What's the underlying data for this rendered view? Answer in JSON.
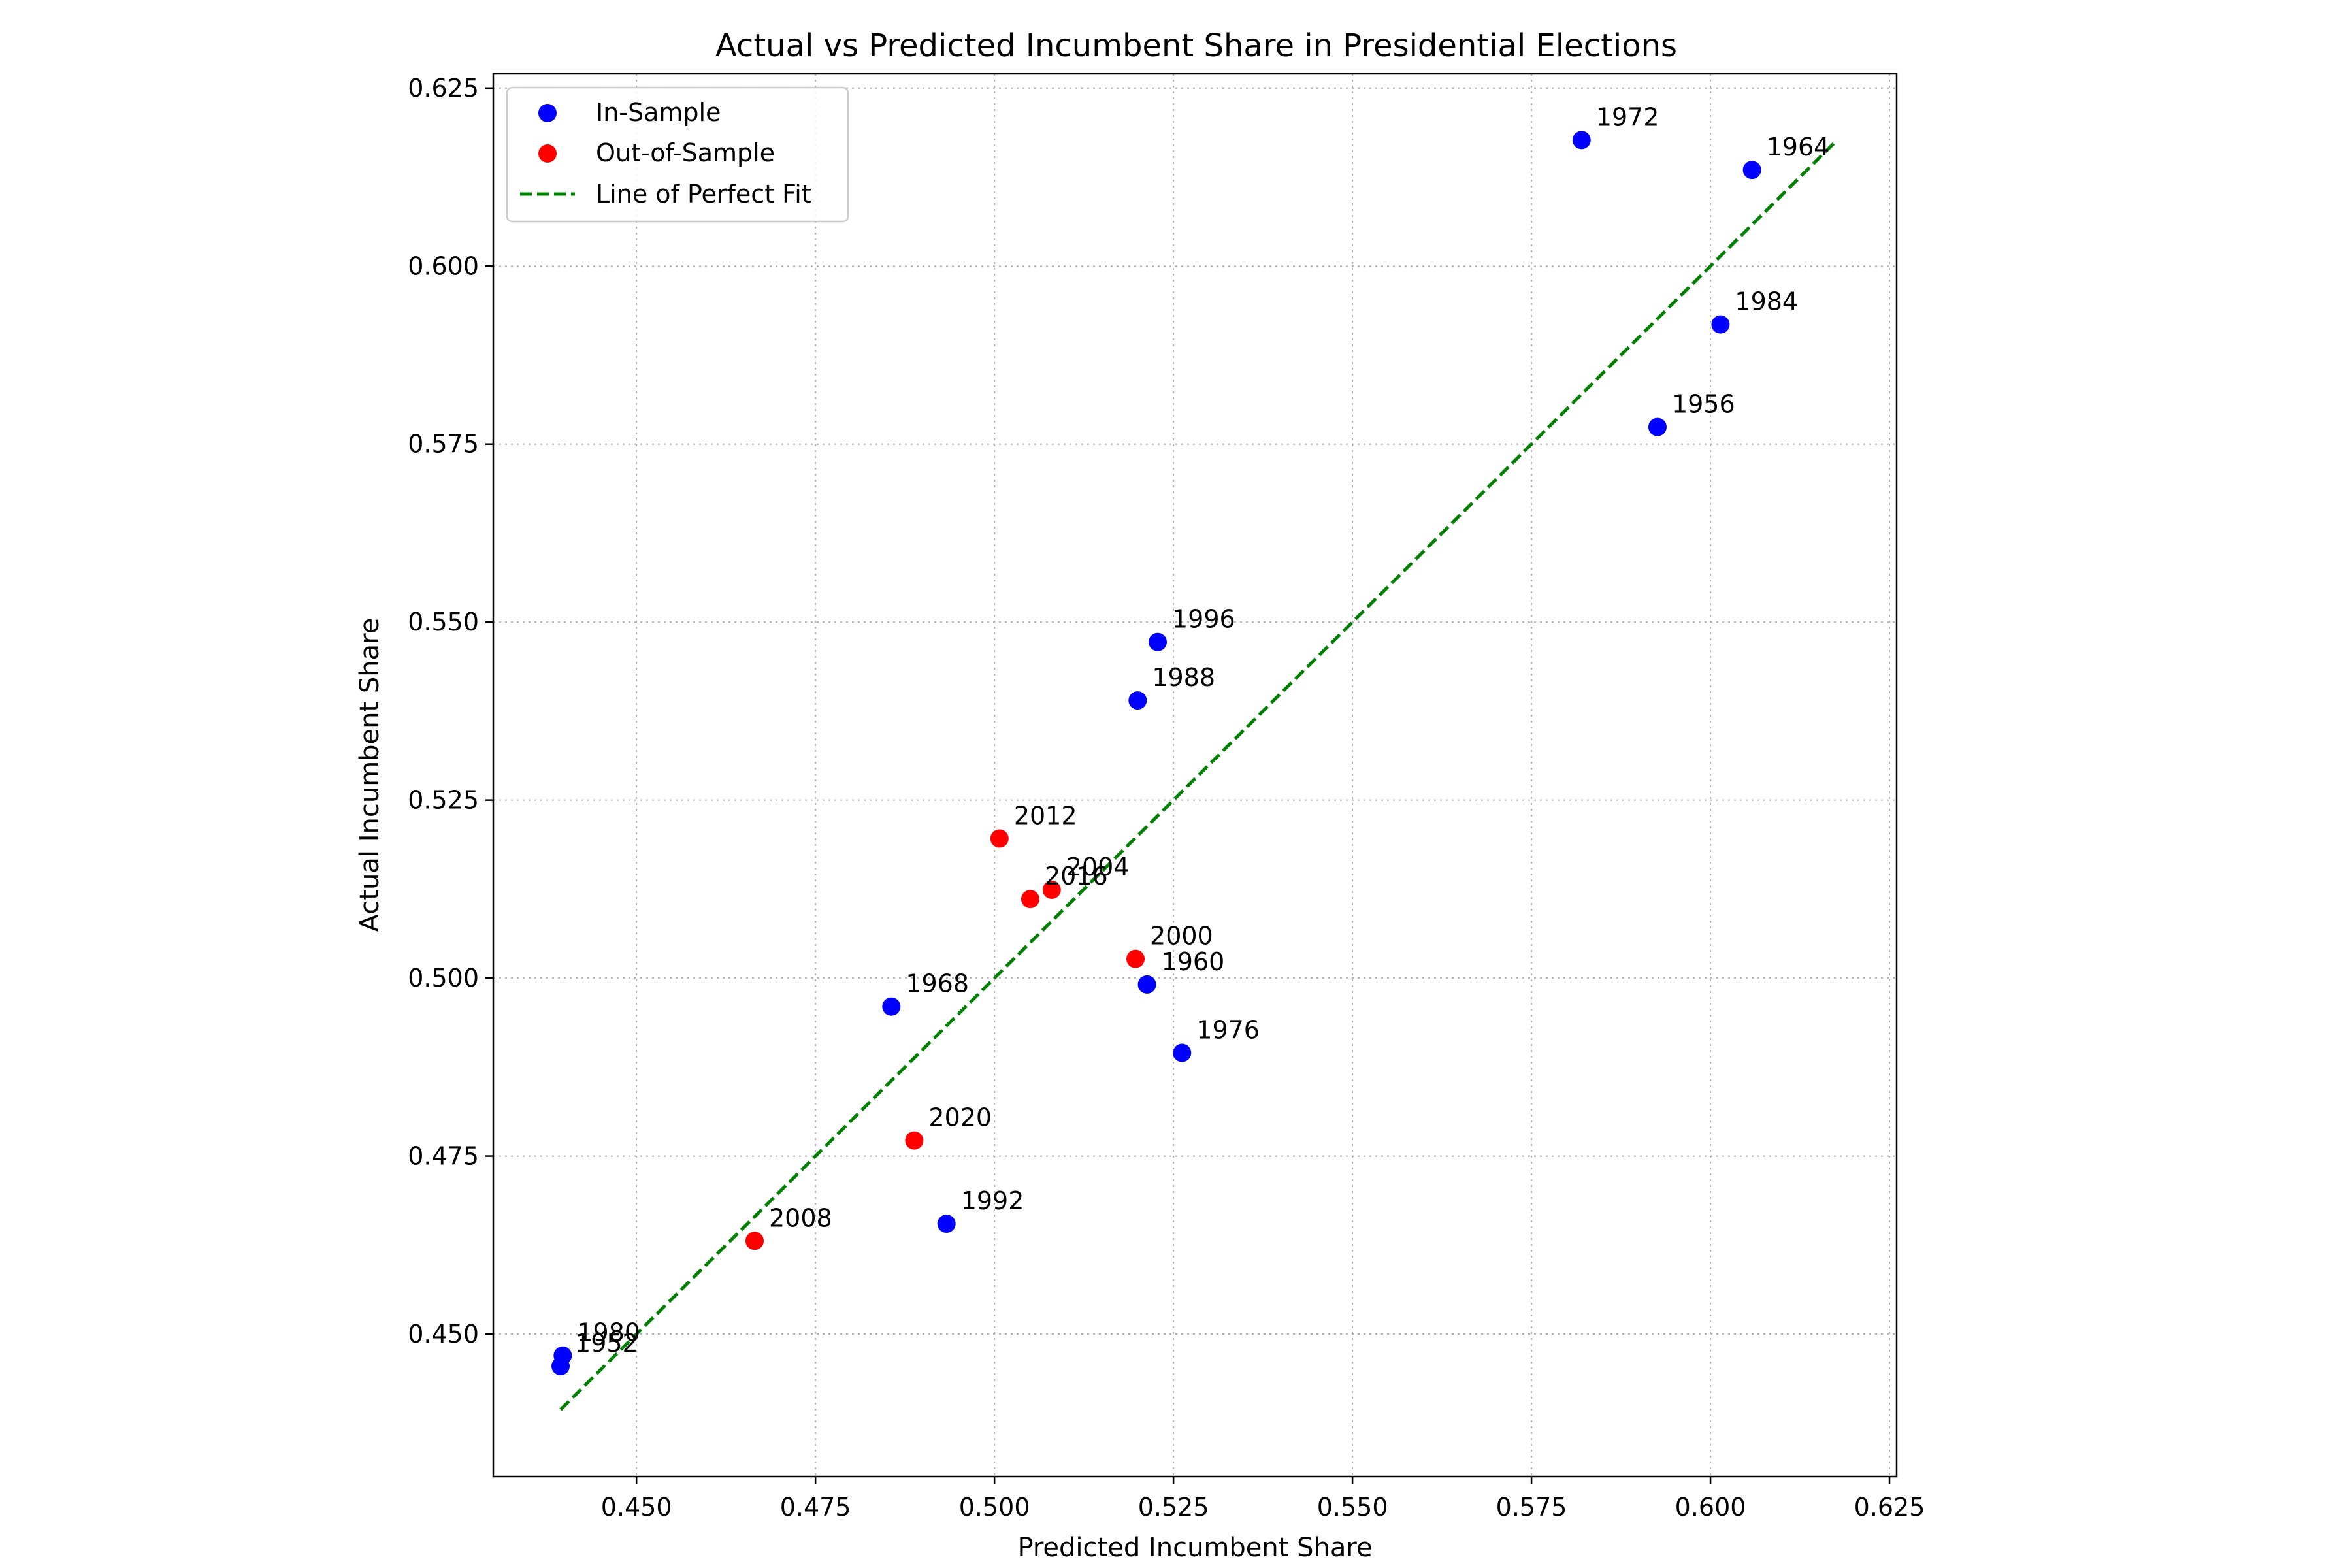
{
  "chart_data": {
    "type": "scatter",
    "title": "Actual vs Predicted Incumbent Share in Presidential Elections",
    "xlabel": "Predicted Incumbent Share",
    "ylabel": "Actual Incumbent Share",
    "xlim": [
      0.43,
      0.626
    ],
    "ylim": [
      0.43,
      0.627
    ],
    "xticks": [
      0.45,
      0.475,
      0.5,
      0.525,
      0.55,
      0.575,
      0.6,
      0.625
    ],
    "yticks": [
      0.45,
      0.475,
      0.5,
      0.525,
      0.55,
      0.575,
      0.6,
      0.625
    ],
    "xtick_labels": [
      "0.450",
      "0.475",
      "0.500",
      "0.525",
      "0.550",
      "0.575",
      "0.600",
      "0.625"
    ],
    "ytick_labels": [
      "0.450",
      "0.475",
      "0.500",
      "0.525",
      "0.550",
      "0.575",
      "0.600",
      "0.625"
    ],
    "grid": true,
    "legend_position": "top-left",
    "series": [
      {
        "name": "In-Sample",
        "color": "#0000ff",
        "points": [
          {
            "label": "1952",
            "x": 0.4394,
            "y": 0.4455
          },
          {
            "label": "1956",
            "x": 0.5926,
            "y": 0.5774
          },
          {
            "label": "1960",
            "x": 0.5213,
            "y": 0.4991
          },
          {
            "label": "1964",
            "x": 0.6058,
            "y": 0.6135
          },
          {
            "label": "1968",
            "x": 0.4856,
            "y": 0.496
          },
          {
            "label": "1972",
            "x": 0.582,
            "y": 0.6177
          },
          {
            "label": "1976",
            "x": 0.5262,
            "y": 0.4895
          },
          {
            "label": "1980",
            "x": 0.4397,
            "y": 0.447
          },
          {
            "label": "1984",
            "x": 0.6014,
            "y": 0.5918
          },
          {
            "label": "1988",
            "x": 0.52,
            "y": 0.539
          },
          {
            "label": "1992",
            "x": 0.4933,
            "y": 0.4655
          },
          {
            "label": "1996",
            "x": 0.5228,
            "y": 0.5472
          }
        ]
      },
      {
        "name": "Out-of-Sample",
        "color": "#ff0000",
        "points": [
          {
            "label": "2000",
            "x": 0.5197,
            "y": 0.5027
          },
          {
            "label": "2004",
            "x": 0.508,
            "y": 0.5124
          },
          {
            "label": "2008",
            "x": 0.4665,
            "y": 0.4631
          },
          {
            "label": "2012",
            "x": 0.5007,
            "y": 0.5196
          },
          {
            "label": "2016",
            "x": 0.505,
            "y": 0.5111
          },
          {
            "label": "2020",
            "x": 0.4888,
            "y": 0.4772
          }
        ]
      }
    ],
    "reference_line": {
      "name": "Line of Perfect Fit",
      "color": "#008000",
      "style": "dashed",
      "from": [
        0.4394,
        0.4394
      ],
      "to": [
        0.6177,
        0.6177
      ]
    }
  }
}
